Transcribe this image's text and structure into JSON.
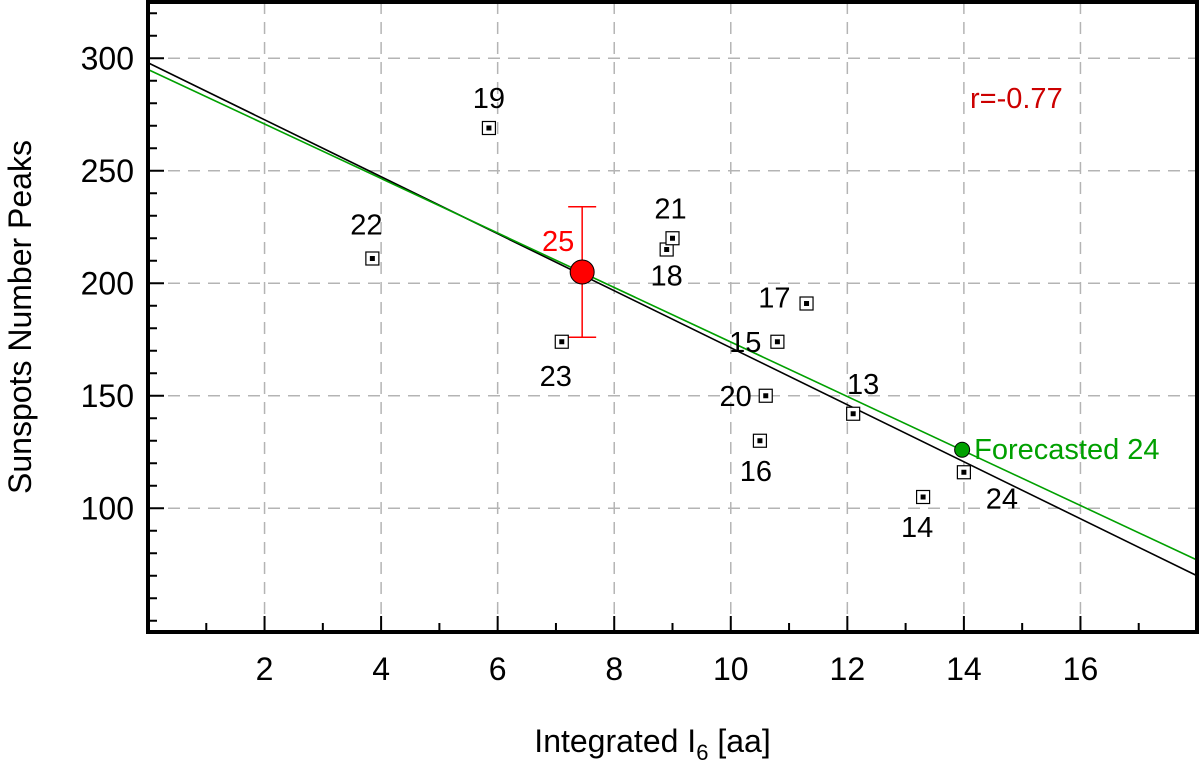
{
  "chart_data": {
    "type": "scatter",
    "xlabel": "Integrated I",
    "xlabel_subscript": "6",
    "xlabel_unit": " [aa]",
    "ylabel": "Sunspots Number Peaks",
    "xlim": [
      0,
      18
    ],
    "ylim": [
      45,
      325
    ],
    "x_ticks": [
      2,
      4,
      6,
      8,
      10,
      12,
      14,
      16
    ],
    "x_minor_ticks": [
      1,
      3,
      5,
      7,
      9,
      11,
      13,
      15,
      17
    ],
    "y_ticks": [
      100,
      150,
      200,
      250,
      300
    ],
    "grid": true,
    "points": [
      {
        "label": "13",
        "x": 12.1,
        "y": 142
      },
      {
        "label": "14",
        "x": 13.3,
        "y": 105
      },
      {
        "label": "15",
        "x": 10.8,
        "y": 174
      },
      {
        "label": "16",
        "x": 10.5,
        "y": 130
      },
      {
        "label": "17",
        "x": 11.3,
        "y": 191
      },
      {
        "label": "18",
        "x": 8.9,
        "y": 215
      },
      {
        "label": "19",
        "x": 5.85,
        "y": 269
      },
      {
        "label": "20",
        "x": 10.6,
        "y": 150
      },
      {
        "label": "21",
        "x": 9.0,
        "y": 220
      },
      {
        "label": "22",
        "x": 3.85,
        "y": 211
      },
      {
        "label": "23",
        "x": 7.1,
        "y": 174
      },
      {
        "label": "24",
        "x": 14.0,
        "y": 116
      }
    ],
    "prediction": {
      "label": "25",
      "x": 7.45,
      "y": 205,
      "err_low": 176,
      "err_high": 234,
      "color": "#ff0000"
    },
    "forecast": {
      "label": "Forecasted 24",
      "x": 13.97,
      "y": 126,
      "color": "#00a000"
    },
    "fit_lines": [
      {
        "color": "#000000",
        "x": [
          0,
          18
        ],
        "y": [
          298,
          70
        ]
      },
      {
        "color": "#00a000",
        "x": [
          0,
          18
        ],
        "y": [
          295,
          77
        ]
      }
    ],
    "annotation": {
      "text": "r=-0.77",
      "color": "#cc0000"
    }
  }
}
